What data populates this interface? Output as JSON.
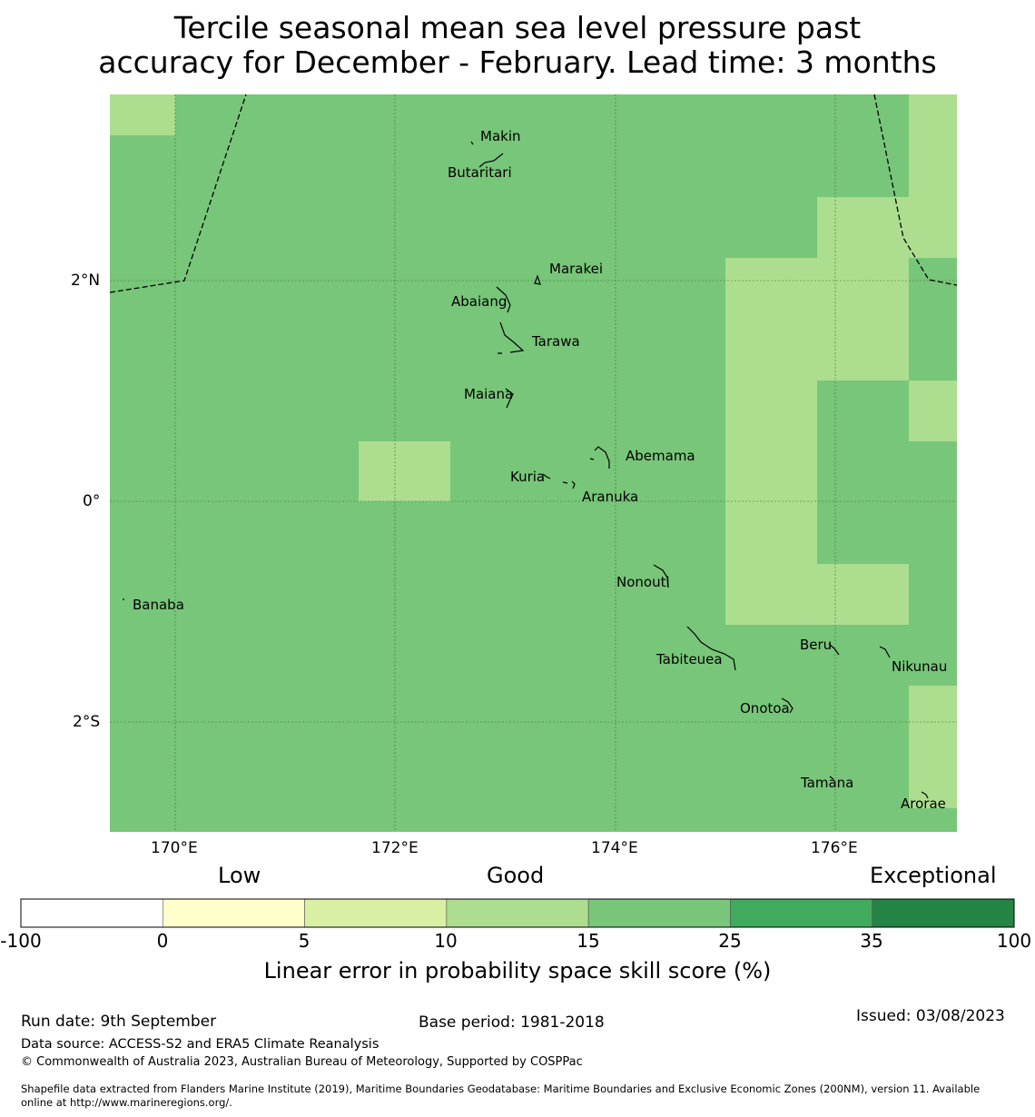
{
  "title": {
    "line1": "Tercile seasonal mean sea level pressure past",
    "line2": "accuracy for December - February. Lead time: 3 months"
  },
  "map": {
    "lat_ticks": [
      "2°N",
      "0°",
      "2°S"
    ],
    "lon_ticks": [
      "170°E",
      "172°E",
      "174°E",
      "176°E"
    ],
    "base_color": "#78c679",
    "light_color": "#addd8e",
    "grid_color": "#3a6e3a",
    "coast_color": "#000000",
    "islands": [
      "Makin",
      "Butaritari",
      "Marakei",
      "Abaiang",
      "Tarawa",
      "Maiana",
      "Abemama",
      "Kuria",
      "Aranuka",
      "Banaba",
      "Nonouti",
      "Beru",
      "Tabiteuea",
      "Nikunau",
      "Onotoa",
      "Tamana",
      "Arorae"
    ]
  },
  "legend": {
    "categories": [
      "Low",
      "Good",
      "Exceptional"
    ],
    "colors": [
      "#ffffff",
      "#ffffcc",
      "#d9f0a3",
      "#addd8e",
      "#78c679",
      "#41ab5d",
      "#238443"
    ],
    "ticks": [
      "-100",
      "0",
      "5",
      "10",
      "15",
      "25",
      "35",
      "100"
    ],
    "title": "Linear error in probability space skill score (%)"
  },
  "footer": {
    "run_date": "Run date: 9th September",
    "base_period": "Base period: 1981-2018",
    "issued": "Issued: 03/08/2023",
    "data_source": "Data source: ACCESS-S2 and ERA5 Climate Reanalysis",
    "copyright": "© Commonwealth of Australia 2023, Australian Bureau of Meteorology, Supported by COSPPac",
    "shapefile_line1": "Shapefile data extracted from Flanders Marine Institute (2019), Maritime Boundaries Geodatabase: Maritime Boundaries and Exclusive Economic Zones (200NM), version 11. Available",
    "shapefile_line2": "online at http://www.marineregions.org/."
  }
}
